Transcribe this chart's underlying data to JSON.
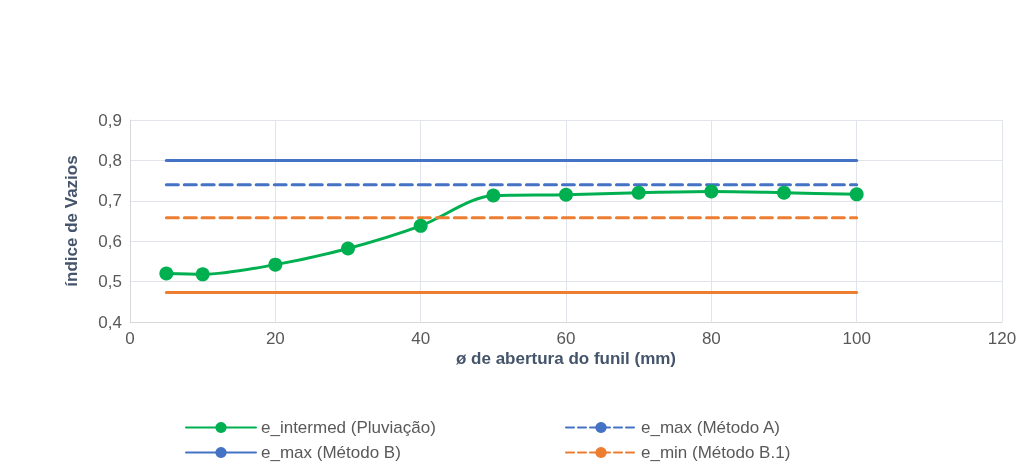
{
  "chart_data": {
    "type": "line",
    "xlabel": "ø de abertura do funil (mm)",
    "ylabel": "índice de Vazios",
    "xlim": [
      0,
      120
    ],
    "xticks": [
      0,
      20,
      40,
      60,
      80,
      100,
      120
    ],
    "ylim": [
      0.4,
      0.9
    ],
    "yticks": [
      {
        "value": 0.4,
        "label": "0,4"
      },
      {
        "value": 0.5,
        "label": "0,5"
      },
      {
        "value": 0.6,
        "label": "0,6"
      },
      {
        "value": 0.7,
        "label": "0,7"
      },
      {
        "value": 0.8,
        "label": "0,8"
      },
      {
        "value": 0.9,
        "label": "0,9"
      }
    ],
    "grid": true,
    "legend": "bottom",
    "series": [
      {
        "name": "e_intermed (Pluviação)",
        "color": "#00b050",
        "marker": "circle",
        "line_style": "solid",
        "x": [
          5,
          10,
          20,
          30,
          40,
          50,
          60,
          70,
          80,
          90,
          100
        ],
        "values": [
          0.52,
          0.518,
          0.542,
          0.582,
          0.638,
          0.713,
          0.715,
          0.72,
          0.723,
          0.72,
          0.716
        ]
      },
      {
        "name": "e_max (Método A)",
        "color": "#4472c4",
        "marker": "none",
        "line_style": "dashed",
        "x": [
          5,
          100
        ],
        "values": [
          0.74,
          0.74
        ]
      },
      {
        "name": "e_max (Método B)",
        "color": "#4472c4",
        "marker": "none",
        "line_style": "solid",
        "x": [
          5,
          100
        ],
        "values": [
          0.8,
          0.8
        ]
      },
      {
        "name": "e_min (Método B.1)",
        "color": "#ed7d31",
        "marker": "none",
        "line_style": "dashed",
        "x": [
          5,
          100
        ],
        "values": [
          0.658,
          0.658
        ]
      },
      {
        "color": "#ed7d31",
        "marker": "none",
        "line_style": "solid",
        "x": [
          5,
          100
        ],
        "values": [
          0.473,
          0.473
        ]
      }
    ]
  }
}
